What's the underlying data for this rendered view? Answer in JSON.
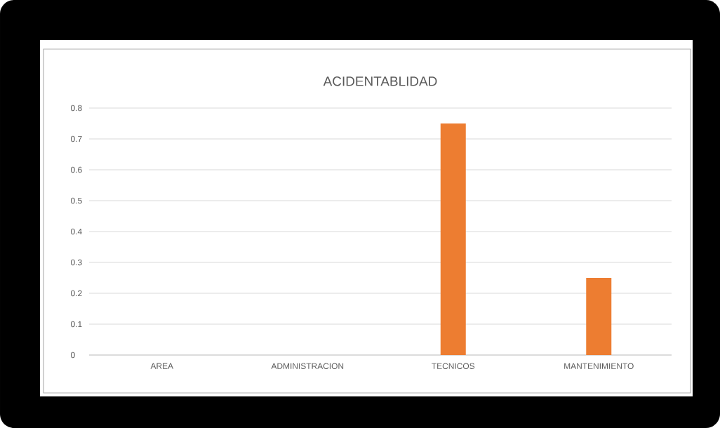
{
  "chart_data": {
    "type": "bar",
    "title": "ACIDENTABLIDAD",
    "categories": [
      "AREA",
      "ADMINISTRACION",
      "TECNICOS",
      "MANTENIMIENTO"
    ],
    "values": [
      null,
      0,
      0.75,
      0.25
    ],
    "color": "#ed7d31",
    "ylim": [
      0,
      0.8
    ],
    "yticks": [
      0,
      0.1,
      0.2,
      0.3,
      0.4,
      0.5,
      0.6,
      0.7,
      0.8
    ],
    "grid": "y"
  }
}
